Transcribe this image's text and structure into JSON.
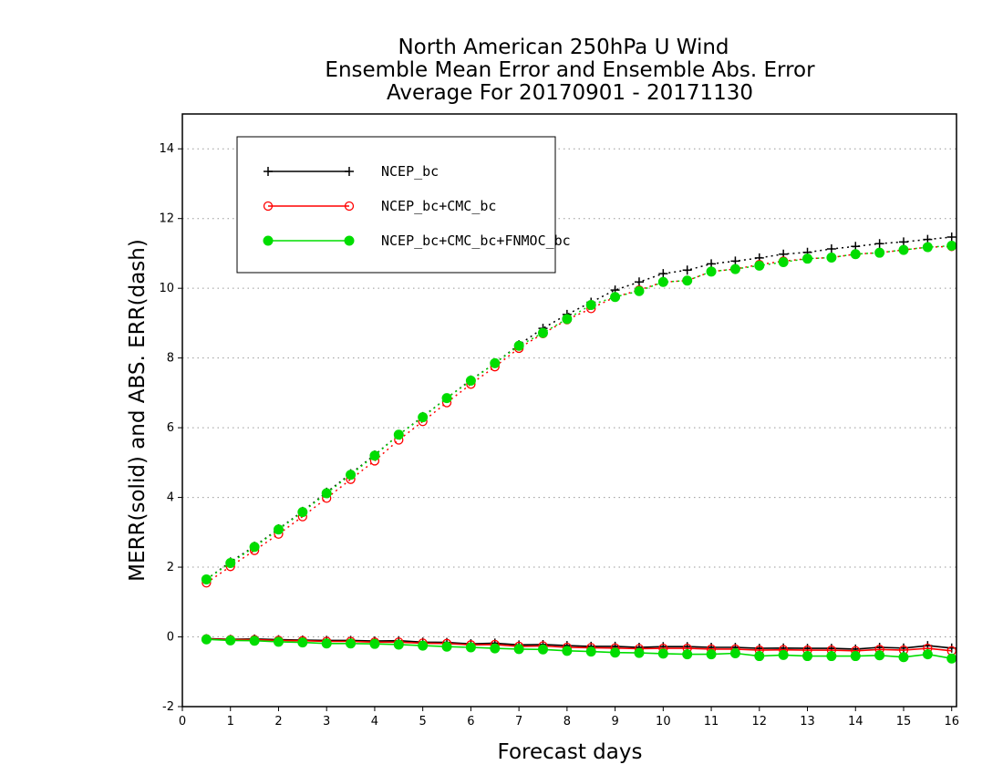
{
  "chart_data": {
    "type": "line",
    "title": [
      "North American 250hPa U Wind",
      "Ensemble Mean Error and Ensemble Abs. Error",
      "Average For 20170901 - 20171130"
    ],
    "xlabel": "Forecast days",
    "ylabel": "MERR(solid) and ABS. ERR(dash)",
    "xlim": [
      0,
      16.1
    ],
    "ylim": [
      -2,
      15
    ],
    "xticks": [
      0,
      1,
      2,
      3,
      4,
      5,
      6,
      7,
      8,
      9,
      10,
      11,
      12,
      13,
      14,
      15,
      16
    ],
    "yticks": [
      -2,
      0,
      2,
      4,
      6,
      8,
      10,
      12,
      14
    ],
    "ytick_labels": [
      "-2",
      "0",
      "2",
      "4",
      "6",
      "8",
      "10",
      "12",
      "14"
    ],
    "grid": "dotted horizontal",
    "legend_position": "top-left",
    "x": [
      0.5,
      1,
      1.5,
      2,
      2.5,
      3,
      3.5,
      4,
      4.5,
      5,
      5.5,
      6,
      6.5,
      7,
      7.5,
      8,
      8.5,
      9,
      9.5,
      10,
      10.5,
      11,
      11.5,
      12,
      12.5,
      13,
      13.5,
      14,
      14.5,
      15,
      15.5,
      16
    ],
    "series": [
      {
        "name": "NCEP_bc",
        "color": "#000000",
        "marker": "plus",
        "mean_error": [
          -0.05,
          -0.07,
          -0.06,
          -0.08,
          -0.09,
          -0.1,
          -0.1,
          -0.12,
          -0.11,
          -0.15,
          -0.16,
          -0.2,
          -0.18,
          -0.23,
          -0.22,
          -0.25,
          -0.27,
          -0.27,
          -0.3,
          -0.28,
          -0.28,
          -0.3,
          -0.3,
          -0.33,
          -0.32,
          -0.33,
          -0.33,
          -0.35,
          -0.3,
          -0.32,
          -0.25,
          -0.32
        ],
        "abs_error": [
          1.65,
          2.15,
          2.6,
          3.1,
          3.6,
          4.15,
          4.68,
          5.22,
          5.8,
          6.32,
          6.85,
          7.37,
          7.85,
          8.38,
          8.85,
          9.25,
          9.6,
          9.95,
          10.18,
          10.42,
          10.52,
          10.7,
          10.78,
          10.87,
          10.98,
          11.03,
          11.13,
          11.2,
          11.28,
          11.33,
          11.4,
          11.47
        ]
      },
      {
        "name": "NCEP_bc+CMC_bc",
        "color": "#ff0000",
        "marker": "circle",
        "mean_error": [
          -0.06,
          -0.08,
          -0.08,
          -0.1,
          -0.11,
          -0.13,
          -0.13,
          -0.15,
          -0.15,
          -0.18,
          -0.19,
          -0.23,
          -0.22,
          -0.27,
          -0.26,
          -0.3,
          -0.31,
          -0.32,
          -0.34,
          -0.33,
          -0.33,
          -0.35,
          -0.35,
          -0.38,
          -0.37,
          -0.38,
          -0.38,
          -0.4,
          -0.36,
          -0.38,
          -0.33,
          -0.4
        ],
        "abs_error": [
          1.55,
          2.02,
          2.48,
          2.95,
          3.45,
          3.98,
          4.52,
          5.05,
          5.65,
          6.18,
          6.72,
          7.25,
          7.75,
          8.28,
          8.7,
          9.1,
          9.42,
          9.75,
          9.95,
          10.18,
          10.22,
          10.48,
          10.55,
          10.68,
          10.78,
          10.85,
          10.88,
          10.98,
          11.02,
          11.1,
          11.18,
          11.2
        ]
      },
      {
        "name": "NCEP_bc+CMC_bc+FNMOC_bc",
        "color": "#00dd00",
        "marker": "dot",
        "mean_error": [
          -0.07,
          -0.1,
          -0.11,
          -0.14,
          -0.16,
          -0.19,
          -0.19,
          -0.2,
          -0.22,
          -0.25,
          -0.28,
          -0.3,
          -0.33,
          -0.35,
          -0.36,
          -0.4,
          -0.42,
          -0.45,
          -0.46,
          -0.48,
          -0.5,
          -0.5,
          -0.47,
          -0.55,
          -0.52,
          -0.55,
          -0.55,
          -0.55,
          -0.53,
          -0.58,
          -0.5,
          -0.62
        ],
        "abs_error": [
          1.65,
          2.12,
          2.58,
          3.08,
          3.58,
          4.12,
          4.65,
          5.2,
          5.8,
          6.3,
          6.85,
          7.35,
          7.85,
          8.35,
          8.72,
          9.12,
          9.52,
          9.75,
          9.92,
          10.18,
          10.22,
          10.48,
          10.55,
          10.65,
          10.75,
          10.85,
          10.88,
          10.98,
          11.02,
          11.1,
          11.18,
          11.22
        ]
      }
    ]
  }
}
